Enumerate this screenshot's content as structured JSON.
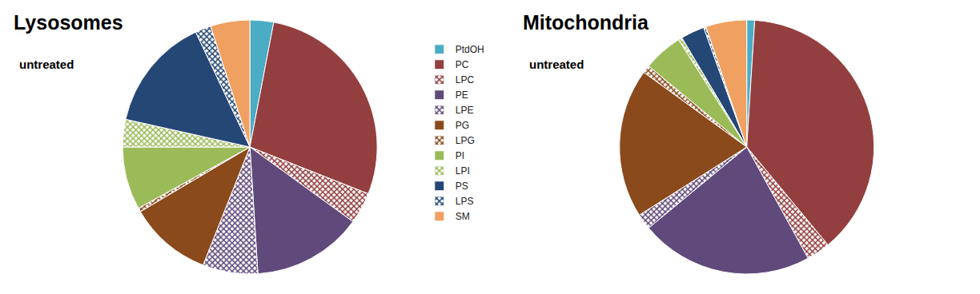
{
  "chart_data": [
    {
      "type": "pie",
      "title": "Lysosomes",
      "subtitle": "untreated",
      "categories": [
        "PtdOH",
        "PC",
        "LPC",
        "PE",
        "LPE",
        "PG",
        "LPG",
        "PI",
        "LPI",
        "PS",
        "LPS",
        "SM"
      ],
      "values": [
        3,
        28,
        4,
        14,
        7,
        10.5,
        0.5,
        8,
        3.5,
        14.5,
        2,
        5
      ],
      "colors": [
        "#4bacc6",
        "#943f3f",
        "#943f3f",
        "#604a7b",
        "#604a7b",
        "#8b4a1c",
        "#8b4a1c",
        "#9bbb59",
        "#9bbb59",
        "#254776",
        "#254776",
        "#f0a061"
      ],
      "legend": "right"
    },
    {
      "type": "pie",
      "title": "Mitochondria",
      "subtitle": "untreated",
      "categories": [
        "PtdOH",
        "PC",
        "LPC",
        "PE",
        "LPE",
        "PG",
        "LPG",
        "PI",
        "LPI",
        "PS",
        "LPS",
        "SM"
      ],
      "values": [
        1,
        38,
        3,
        22,
        2,
        19,
        1,
        5,
        0.5,
        3,
        0.3,
        5.2
      ],
      "colors": [
        "#4bacc6",
        "#943f3f",
        "#943f3f",
        "#604a7b",
        "#604a7b",
        "#8b4a1c",
        "#8b4a1c",
        "#9bbb59",
        "#9bbb59",
        "#254776",
        "#254776",
        "#f0a061"
      ],
      "legend": "right"
    }
  ]
}
